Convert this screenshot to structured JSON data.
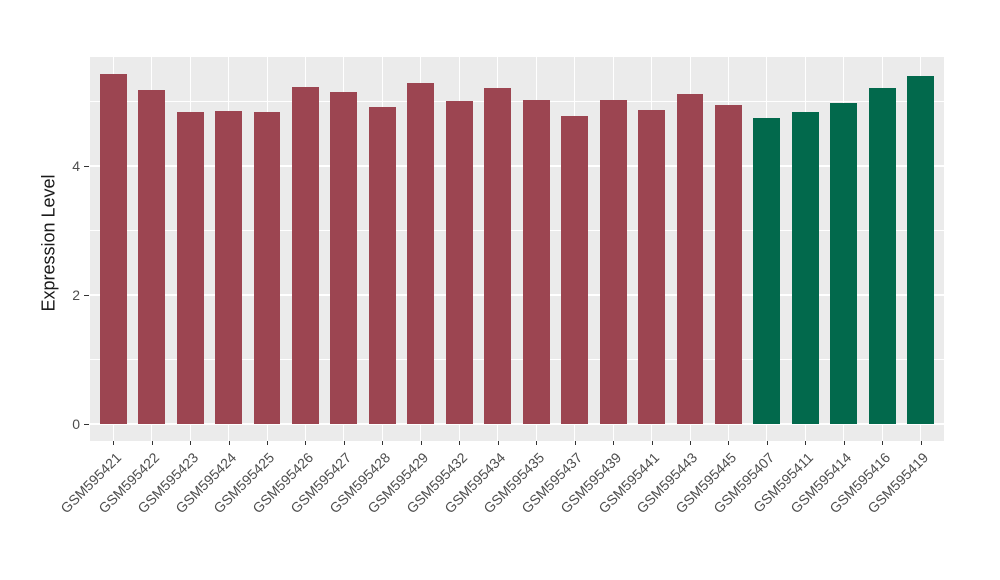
{
  "figure": {
    "background": "#FFFFFF",
    "panel_background": "#EBEBEB",
    "grid_color": "#FFFFFF",
    "tick_mark_color": "#333333",
    "axis_text_color": "#4D4D4D",
    "axis_title_color": "#1A1A1A"
  },
  "chart_data": {
    "type": "bar",
    "title": "",
    "xlabel": "",
    "ylabel": "Expression Level",
    "legend_position": "none",
    "grid": true,
    "x_tick_rotation": 45,
    "ylim": [
      -0.27,
      5.69
    ],
    "yticks": [
      0,
      2,
      4
    ],
    "ytick_labels": [
      "0",
      "2",
      "4"
    ],
    "gridlines": [
      0,
      1,
      2,
      3,
      4,
      5
    ],
    "group_colors": {
      "groupA": "#9C4551",
      "groupB": "#02694C"
    },
    "bars": [
      {
        "label": "GSM595421",
        "value": 5.42,
        "group": "groupA"
      },
      {
        "label": "GSM595422",
        "value": 5.18,
        "group": "groupA"
      },
      {
        "label": "GSM595423",
        "value": 4.83,
        "group": "groupA"
      },
      {
        "label": "GSM595424",
        "value": 4.85,
        "group": "groupA"
      },
      {
        "label": "GSM595425",
        "value": 4.83,
        "group": "groupA"
      },
      {
        "label": "GSM595426",
        "value": 5.22,
        "group": "groupA"
      },
      {
        "label": "GSM595427",
        "value": 5.14,
        "group": "groupA"
      },
      {
        "label": "GSM595428",
        "value": 4.92,
        "group": "groupA"
      },
      {
        "label": "GSM595429",
        "value": 5.29,
        "group": "groupA"
      },
      {
        "label": "GSM595432",
        "value": 5.01,
        "group": "groupA"
      },
      {
        "label": "GSM595434",
        "value": 5.21,
        "group": "groupA"
      },
      {
        "label": "GSM595435",
        "value": 5.02,
        "group": "groupA"
      },
      {
        "label": "GSM595437",
        "value": 4.78,
        "group": "groupA"
      },
      {
        "label": "GSM595439",
        "value": 5.03,
        "group": "groupA"
      },
      {
        "label": "GSM595441",
        "value": 4.87,
        "group": "groupA"
      },
      {
        "label": "GSM595443",
        "value": 5.12,
        "group": "groupA"
      },
      {
        "label": "GSM595445",
        "value": 4.95,
        "group": "groupA"
      },
      {
        "label": "GSM595407",
        "value": 4.75,
        "group": "groupB"
      },
      {
        "label": "GSM595411",
        "value": 4.83,
        "group": "groupB"
      },
      {
        "label": "GSM595414",
        "value": 4.97,
        "group": "groupB"
      },
      {
        "label": "GSM595416",
        "value": 5.21,
        "group": "groupB"
      },
      {
        "label": "GSM595419",
        "value": 5.39,
        "group": "groupB"
      }
    ]
  }
}
